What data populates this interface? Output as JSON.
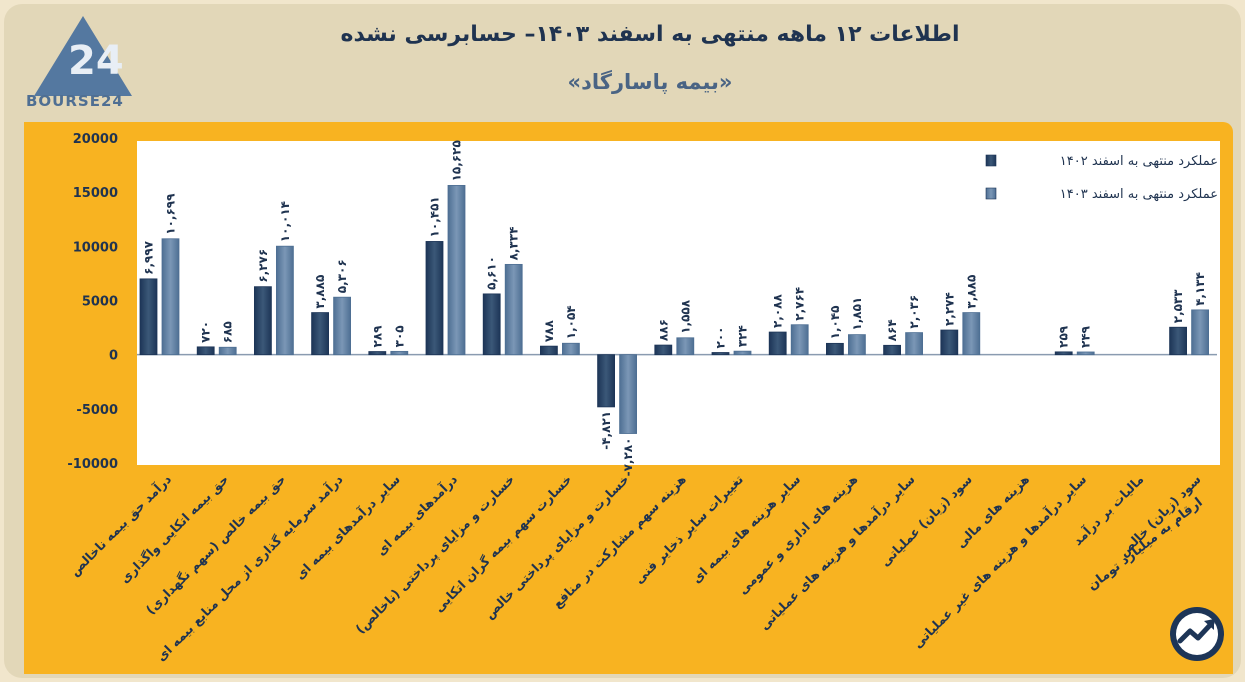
{
  "header": {
    "title": "اطلاعات ۱۲ ماهه منتهی به اسفند ۱۴۰۳– حسابرسی نشده",
    "subtitle": "«بیمه پاسارگاد»",
    "logo_text": "BOURSE24",
    "logo_mark": "24",
    "units_note": "ارقام به میلیارد تومان"
  },
  "colors": {
    "series_1402": "#1d3557",
    "series_1403": "#4e6f93",
    "panel": "#f8b321",
    "background": "#e2d7b8"
  },
  "chart_data": {
    "type": "bar",
    "ylim": [
      -10000,
      20000
    ],
    "y_ticks": [
      {
        "value": 20000,
        "label": "20000"
      },
      {
        "value": 15000,
        "label": "15000"
      },
      {
        "value": 10000,
        "label": "10000"
      },
      {
        "value": 5000,
        "label": "5000"
      },
      {
        "value": 0,
        "label": "0"
      },
      {
        "value": -5000,
        "label": "-5000"
      },
      {
        "value": -10000,
        "label": "-10000"
      }
    ],
    "categories": [
      "درآمد حق بیمه ناخالص",
      "حق بیمه اتکایی واگذاری",
      "حق بیمه خالص (سهم نگهداری)",
      "درآمد سرمایه گذاری از محل منابع بیمه ای",
      "سایر درآمدهای بیمه ای",
      "درآمدهای بیمه ای",
      "خسارت و مزایای پرداختی (ناخالص)",
      "خسارت سهم بیمه گران اتکایی",
      "خسارت و مزایای پرداختی خالص",
      "هزینه سهم مشارکت در منافع",
      "تغییرات سایر ذخایر فنی",
      "سایر هزینه های بیمه ای",
      "هزینه های اداری و عمومی",
      "سایر درآمدها و هزینه های عملیاتی",
      "سود (زیان) عملیاتی",
      "هزینه های مالی",
      "سایر درآمدها و هزینه های غیر عملیاتی",
      "مالیات بر درآمد",
      "سود (زیان) خالص"
    ],
    "series": [
      {
        "name": "عملکرد منتهی به اسفند ۱۴۰۲",
        "values": [
          6997,
          720,
          6276,
          3885,
          289,
          10451,
          5610,
          788,
          -4821,
          886,
          200,
          2088,
          1045,
          864,
          2274,
          null,
          259,
          null,
          2533
        ],
        "labels": [
          "۶,۹۹۷",
          "۷۲۰",
          "۶,۲۷۶",
          "۳,۸۸۵",
          "۲۸۹",
          "۱۰,۴۵۱",
          "۵,۶۱۰",
          "۷۸۸",
          "-۴,۸۲۱",
          "۸۸۶",
          "۲۰۰",
          "۲,۰۸۸",
          "۱,۰۴۵",
          "۸۶۴",
          "۲,۲۷۴",
          "",
          "۲۵۹",
          "",
          "۲,۵۳۳"
        ]
      },
      {
        "name": "عملکرد منتهی به اسفند ۱۴۰۳",
        "values": [
          10699,
          685,
          10014,
          5306,
          305,
          15625,
          8334,
          1054,
          -7280,
          1558,
          324,
          2764,
          1851,
          2036,
          3885,
          null,
          249,
          null,
          4134
        ],
        "labels": [
          "۱۰,۶۹۹",
          "۶۸۵",
          "۱۰,۰۱۴",
          "۵,۳۰۶",
          "۳۰۵",
          "۱۵,۶۲۵",
          "۸,۳۳۴",
          "۱,۰۵۴",
          "-۷,۲۸۰",
          "۱,۵۵۸",
          "۳۲۴",
          "۲,۷۶۴",
          "۱,۸۵۱",
          "۲,۰۳۶",
          "۳,۸۸۵",
          "",
          "۲۴۹",
          "",
          "۴,۱۳۴"
        ]
      }
    ],
    "legend_position": "top-right"
  }
}
